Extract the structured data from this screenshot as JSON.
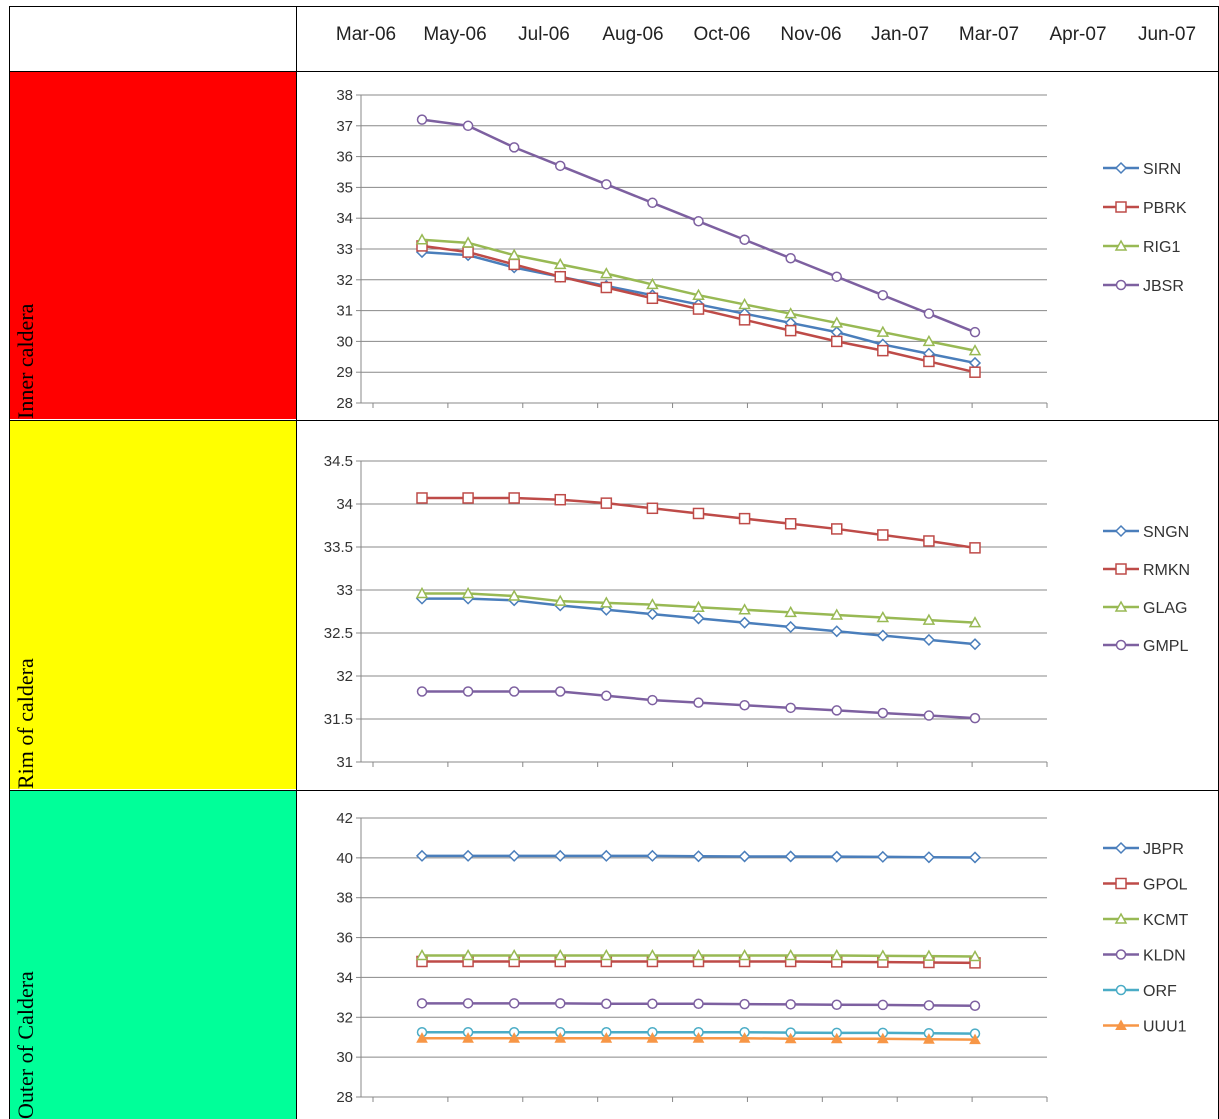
{
  "header": {
    "dates": [
      "Mar-06",
      "May-06",
      "Jul-06",
      "Aug-06",
      "Oct-06",
      "Nov-06",
      "Jan-07",
      "Mar-07",
      "Apr-07",
      "Jun-07"
    ]
  },
  "rows": [
    {
      "label": "Inner caldera",
      "color": "#ff0000"
    },
    {
      "label": "Rim of caldera",
      "color": "#ffff00"
    },
    {
      "label": "Outer of Caldera",
      "color": "#00ff99"
    }
  ],
  "chart_data": [
    {
      "type": "line",
      "ylim": [
        28,
        38
      ],
      "yticks": [
        28,
        29,
        30,
        31,
        32,
        33,
        34,
        35,
        36,
        37,
        38
      ],
      "x": [
        1,
        2,
        3,
        4,
        5,
        6,
        7,
        8,
        9,
        10,
        11,
        12,
        13
      ],
      "series": [
        {
          "name": "SIRN",
          "color": "#4a7ebb",
          "marker": "diamond",
          "values": [
            32.9,
            32.8,
            32.4,
            32.1,
            31.8,
            31.5,
            31.2,
            30.9,
            30.6,
            30.3,
            29.9,
            29.6,
            29.3
          ]
        },
        {
          "name": "PBRK",
          "color": "#be4b48",
          "marker": "square",
          "values": [
            33.1,
            32.9,
            32.5,
            32.1,
            31.75,
            31.4,
            31.05,
            30.7,
            30.35,
            30.0,
            29.7,
            29.35,
            29.0
          ]
        },
        {
          "name": "RIG1",
          "color": "#98b954",
          "marker": "triangle",
          "values": [
            33.3,
            33.2,
            32.8,
            32.5,
            32.2,
            31.85,
            31.5,
            31.2,
            30.9,
            30.6,
            30.3,
            30.0,
            29.7
          ]
        },
        {
          "name": "JBSR",
          "color": "#7d60a0",
          "marker": "circle",
          "values": [
            37.2,
            37.0,
            36.3,
            35.7,
            35.1,
            34.5,
            33.9,
            33.3,
            32.7,
            32.1,
            31.5,
            30.9,
            30.3
          ]
        }
      ]
    },
    {
      "type": "line",
      "ylim": [
        31,
        34.5
      ],
      "yticks": [
        31,
        31.5,
        32,
        32.5,
        33,
        33.5,
        34,
        34.5
      ],
      "x": [
        1,
        2,
        3,
        4,
        5,
        6,
        7,
        8,
        9,
        10,
        11,
        12,
        13
      ],
      "series": [
        {
          "name": "SNGN",
          "color": "#4a7ebb",
          "marker": "diamond",
          "values": [
            32.9,
            32.9,
            32.88,
            32.82,
            32.77,
            32.72,
            32.67,
            32.62,
            32.57,
            32.52,
            32.47,
            32.42,
            32.37
          ]
        },
        {
          "name": "RMKN",
          "color": "#be4b48",
          "marker": "square",
          "values": [
            34.07,
            34.07,
            34.07,
            34.05,
            34.01,
            33.95,
            33.89,
            33.83,
            33.77,
            33.71,
            33.64,
            33.57,
            33.49
          ]
        },
        {
          "name": "GLAG",
          "color": "#98b954",
          "marker": "triangle",
          "values": [
            32.96,
            32.96,
            32.93,
            32.87,
            32.85,
            32.83,
            32.8,
            32.77,
            32.74,
            32.71,
            32.68,
            32.65,
            32.62
          ]
        },
        {
          "name": "GMPL",
          "color": "#7d60a0",
          "marker": "circle",
          "values": [
            31.82,
            31.82,
            31.82,
            31.82,
            31.77,
            31.72,
            31.69,
            31.66,
            31.63,
            31.6,
            31.57,
            31.54,
            31.51
          ]
        }
      ]
    },
    {
      "type": "line",
      "ylim": [
        28,
        42
      ],
      "yticks": [
        28,
        30,
        32,
        34,
        36,
        38,
        40,
        42
      ],
      "x": [
        1,
        2,
        3,
        4,
        5,
        6,
        7,
        8,
        9,
        10,
        11,
        12,
        13
      ],
      "series": [
        {
          "name": "JBPR",
          "color": "#4a7ebb",
          "marker": "diamond",
          "values": [
            40.1,
            40.1,
            40.1,
            40.1,
            40.1,
            40.1,
            40.08,
            40.07,
            40.07,
            40.06,
            40.05,
            40.03,
            40.02
          ]
        },
        {
          "name": "GPOL",
          "color": "#be4b48",
          "marker": "square",
          "values": [
            34.8,
            34.8,
            34.8,
            34.8,
            34.8,
            34.8,
            34.8,
            34.8,
            34.8,
            34.78,
            34.77,
            34.75,
            34.73
          ]
        },
        {
          "name": "KCMT",
          "color": "#98b954",
          "marker": "triangle",
          "values": [
            35.1,
            35.1,
            35.1,
            35.1,
            35.1,
            35.1,
            35.1,
            35.1,
            35.1,
            35.1,
            35.08,
            35.07,
            35.05
          ]
        },
        {
          "name": "KLDN",
          "color": "#7d60a0",
          "marker": "circle",
          "values": [
            32.7,
            32.7,
            32.7,
            32.7,
            32.68,
            32.68,
            32.68,
            32.66,
            32.65,
            32.63,
            32.62,
            32.6,
            32.58
          ]
        },
        {
          "name": "ORF",
          "color": "#4aacc6",
          "marker": "circle",
          "values": [
            31.25,
            31.25,
            31.25,
            31.25,
            31.25,
            31.25,
            31.25,
            31.25,
            31.23,
            31.22,
            31.22,
            31.2,
            31.18
          ]
        },
        {
          "name": "UUU1",
          "color": "#f79646",
          "marker": "triangle-filled",
          "values": [
            30.95,
            30.95,
            30.95,
            30.95,
            30.95,
            30.95,
            30.95,
            30.95,
            30.92,
            30.92,
            30.92,
            30.9,
            30.88
          ]
        }
      ]
    }
  ]
}
